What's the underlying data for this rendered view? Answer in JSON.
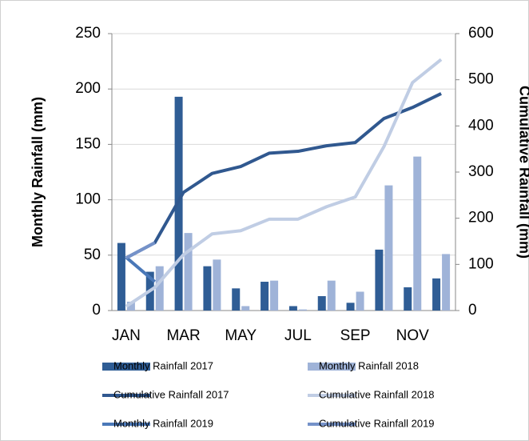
{
  "chart_data": {
    "type": "combo",
    "categories": [
      "JAN",
      null,
      "MAR",
      null,
      "MAY",
      null,
      "JUL",
      null,
      "SEP",
      null,
      "NOV",
      null
    ],
    "ylabel": "Monthly Rainfall (mm)",
    "y2label": "Cumulative Rainfall (mm)",
    "ylim": [
      0,
      250
    ],
    "yticks": [
      0,
      50,
      100,
      150,
      200,
      250
    ],
    "y2lim": [
      0,
      600
    ],
    "y2ticks": [
      0,
      100,
      200,
      300,
      400,
      500,
      600
    ],
    "series": [
      {
        "name": "Monthly Rainfall 2017",
        "type": "bar",
        "color": "#2f5d95",
        "values": [
          61,
          35,
          193,
          40,
          20,
          26,
          4,
          13,
          7,
          55,
          21,
          29
        ]
      },
      {
        "name": "Monthly Rainfall 2018",
        "type": "bar",
        "color": "#9fb3d8",
        "values": [
          8,
          40,
          70,
          46,
          4,
          27,
          1,
          27,
          17,
          113,
          139,
          51
        ]
      },
      {
        "name": "Cumulative Rainfall 2017",
        "type": "line",
        "axis": "y2",
        "color": "#30588f",
        "values": [
          114,
          147,
          256,
          297,
          312,
          341,
          345,
          357,
          364,
          416,
          440,
          470
        ]
      },
      {
        "name": "Cumulative Rainfall 2018",
        "type": "line",
        "axis": "y2",
        "color": "#c0cde4",
        "values": [
          9,
          50,
          121,
          166,
          173,
          198,
          198,
          225,
          246,
          355,
          494,
          544
        ]
      },
      {
        "name": "Monthly Rainfall 2019",
        "type": "line",
        "color": "#4a78b8",
        "values": [
          48,
          26,
          null,
          null,
          null,
          null,
          null,
          null,
          null,
          null,
          null,
          null
        ]
      },
      {
        "name": "Cumulative Rainfall 2019",
        "type": "line",
        "axis": "y2",
        "color": "#7592c9",
        "values": [
          114,
          147,
          null,
          null,
          null,
          null,
          null,
          null,
          null,
          null,
          null,
          null
        ]
      }
    ]
  }
}
